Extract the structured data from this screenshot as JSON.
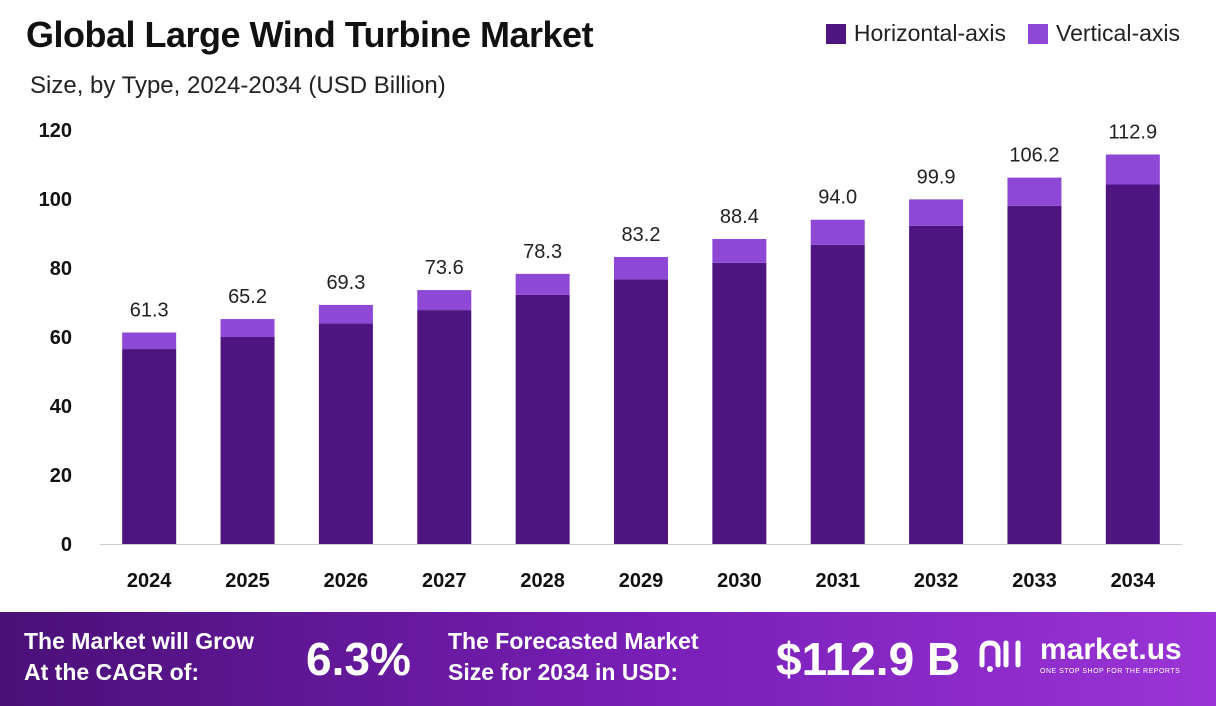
{
  "header": {
    "title": "Global Large Wind Turbine Market",
    "subtitle": "Size, by Type, 2024-2034 (USD Billion)"
  },
  "colors": {
    "horizontal": "#4e1480",
    "vertical": "#8e48d6"
  },
  "chart_data": {
    "type": "bar",
    "stacked": true,
    "categories": [
      "2024",
      "2025",
      "2026",
      "2027",
      "2028",
      "2029",
      "2030",
      "2031",
      "2032",
      "2033",
      "2034"
    ],
    "series": [
      {
        "name": "Horizontal-axis",
        "values": [
          56.5,
          60.0,
          63.9,
          67.8,
          72.2,
          76.7,
          81.5,
          86.7,
          92.2,
          98.0,
          104.2
        ]
      },
      {
        "name": "Vertical-axis",
        "values": [
          4.8,
          5.2,
          5.4,
          5.8,
          6.1,
          6.5,
          6.9,
          7.3,
          7.7,
          8.2,
          8.7
        ]
      }
    ],
    "totals": [
      "61.3",
      "65.2",
      "69.3",
      "73.6",
      "78.3",
      "83.2",
      "88.4",
      "94.0",
      "99.9",
      "106.2",
      "112.9"
    ],
    "yticks": [
      "0",
      "20",
      "40",
      "60",
      "80",
      "100",
      "120"
    ],
    "ylim": [
      0,
      120
    ],
    "legend_position": "top-right",
    "grid": false
  },
  "footer": {
    "cagr_label_line1": "The Market will Grow",
    "cagr_label_line2": "At the CAGR of:",
    "cagr_value": "6.3%",
    "forecast_label_line1": "The Forecasted Market",
    "forecast_label_line2": "Size for 2034 in USD:",
    "forecast_value": "$112.9 B",
    "logo_name": "market.us",
    "logo_tagline": "ONE STOP SHOP FOR THE REPORTS"
  }
}
